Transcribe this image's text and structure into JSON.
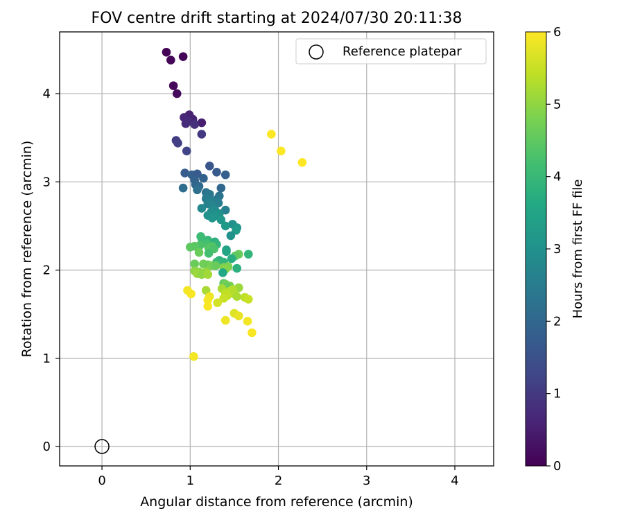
{
  "chart_data": {
    "type": "scatter",
    "title": "FOV centre drift starting at 2024/07/30 20:11:38",
    "xlabel": "Angular distance from reference (arcmin)",
    "ylabel": "Rotation from reference (arcmin)",
    "xlim": [
      -0.48,
      4.44
    ],
    "ylim": [
      -0.22,
      4.7
    ],
    "x_ticks": [
      0,
      1,
      2,
      3,
      4
    ],
    "y_ticks": [
      0,
      1,
      2,
      3,
      4
    ],
    "grid": true,
    "legend": {
      "placement": "top-right",
      "entries": [
        "Reference platepar"
      ]
    },
    "reference_point": {
      "name": "Reference platepar",
      "x": 0,
      "y": 0,
      "marker": "open-circle"
    },
    "colorbar": {
      "label": "Hours from first FF file",
      "min": 0,
      "max": 6,
      "ticks": [
        0,
        1,
        2,
        3,
        4,
        5,
        6
      ],
      "colormap": "viridis",
      "colormap_stops": [
        "#440154",
        "#482475",
        "#414487",
        "#355f8d",
        "#2a788e",
        "#21918c",
        "#22a884",
        "#44bf70",
        "#7ad151",
        "#bddf26",
        "#fde725"
      ]
    },
    "points": [
      {
        "x": 0.73,
        "y": 4.47,
        "h": 0.02
      },
      {
        "x": 0.92,
        "y": 4.42,
        "h": 0.05
      },
      {
        "x": 0.78,
        "y": 4.38,
        "h": 0.08
      },
      {
        "x": 0.81,
        "y": 4.09,
        "h": 0.12
      },
      {
        "x": 0.85,
        "y": 4.0,
        "h": 0.15
      },
      {
        "x": 0.99,
        "y": 3.76,
        "h": 0.55
      },
      {
        "x": 0.93,
        "y": 3.73,
        "h": 0.65
      },
      {
        "x": 1.03,
        "y": 3.71,
        "h": 0.6
      },
      {
        "x": 0.98,
        "y": 3.69,
        "h": 0.7
      },
      {
        "x": 1.13,
        "y": 3.67,
        "h": 0.5
      },
      {
        "x": 0.95,
        "y": 3.66,
        "h": 0.75
      },
      {
        "x": 1.05,
        "y": 3.65,
        "h": 0.8
      },
      {
        "x": 1.13,
        "y": 3.54,
        "h": 1.0
      },
      {
        "x": 0.84,
        "y": 3.47,
        "h": 1.05
      },
      {
        "x": 0.86,
        "y": 3.44,
        "h": 1.1
      },
      {
        "x": 0.96,
        "y": 3.35,
        "h": 1.2
      },
      {
        "x": 1.22,
        "y": 3.18,
        "h": 1.6
      },
      {
        "x": 1.3,
        "y": 3.11,
        "h": 1.7
      },
      {
        "x": 1.4,
        "y": 3.08,
        "h": 1.8
      },
      {
        "x": 0.94,
        "y": 3.1,
        "h": 1.75
      },
      {
        "x": 1.02,
        "y": 3.08,
        "h": 1.8
      },
      {
        "x": 1.08,
        "y": 3.09,
        "h": 1.7
      },
      {
        "x": 1.05,
        "y": 3.02,
        "h": 1.85
      },
      {
        "x": 1.15,
        "y": 3.04,
        "h": 1.9
      },
      {
        "x": 1.06,
        "y": 2.97,
        "h": 2.0
      },
      {
        "x": 1.1,
        "y": 2.95,
        "h": 2.05
      },
      {
        "x": 0.92,
        "y": 2.93,
        "h": 2.1
      },
      {
        "x": 1.35,
        "y": 2.93,
        "h": 2.0
      },
      {
        "x": 1.08,
        "y": 2.91,
        "h": 2.2
      },
      {
        "x": 1.18,
        "y": 2.88,
        "h": 2.3
      },
      {
        "x": 1.22,
        "y": 2.86,
        "h": 2.4
      },
      {
        "x": 1.33,
        "y": 2.84,
        "h": 2.3
      },
      {
        "x": 1.18,
        "y": 2.81,
        "h": 2.5
      },
      {
        "x": 1.3,
        "y": 2.8,
        "h": 2.4
      },
      {
        "x": 1.24,
        "y": 2.78,
        "h": 2.6
      },
      {
        "x": 1.2,
        "y": 2.75,
        "h": 2.65
      },
      {
        "x": 1.32,
        "y": 2.76,
        "h": 2.55
      },
      {
        "x": 1.25,
        "y": 2.73,
        "h": 2.7
      },
      {
        "x": 1.13,
        "y": 2.7,
        "h": 2.8
      },
      {
        "x": 1.4,
        "y": 2.68,
        "h": 2.6
      },
      {
        "x": 1.28,
        "y": 2.68,
        "h": 2.85
      },
      {
        "x": 1.24,
        "y": 2.66,
        "h": 2.9
      },
      {
        "x": 1.33,
        "y": 2.64,
        "h": 2.95
      },
      {
        "x": 1.2,
        "y": 2.62,
        "h": 3.0
      },
      {
        "x": 1.3,
        "y": 2.62,
        "h": 3.05
      },
      {
        "x": 1.25,
        "y": 2.59,
        "h": 3.1
      },
      {
        "x": 1.35,
        "y": 2.57,
        "h": 3.15
      },
      {
        "x": 1.48,
        "y": 2.52,
        "h": 3.0
      },
      {
        "x": 1.4,
        "y": 2.5,
        "h": 3.2
      },
      {
        "x": 1.53,
        "y": 2.48,
        "h": 3.1
      },
      {
        "x": 1.52,
        "y": 2.45,
        "h": 3.25
      },
      {
        "x": 1.46,
        "y": 2.39,
        "h": 3.0
      },
      {
        "x": 1.12,
        "y": 2.38,
        "h": 4.0
      },
      {
        "x": 1.13,
        "y": 2.36,
        "h": 4.1
      },
      {
        "x": 1.2,
        "y": 2.34,
        "h": 4.0
      },
      {
        "x": 1.28,
        "y": 2.32,
        "h": 3.8
      },
      {
        "x": 1.18,
        "y": 2.3,
        "h": 4.2
      },
      {
        "x": 1.3,
        "y": 2.29,
        "h": 3.9
      },
      {
        "x": 1.11,
        "y": 2.28,
        "h": 4.3
      },
      {
        "x": 1.25,
        "y": 2.27,
        "h": 4.35
      },
      {
        "x": 1.0,
        "y": 2.26,
        "h": 4.5
      },
      {
        "x": 1.05,
        "y": 2.27,
        "h": 4.45
      },
      {
        "x": 1.21,
        "y": 2.25,
        "h": 4.4
      },
      {
        "x": 1.27,
        "y": 2.24,
        "h": 4.3
      },
      {
        "x": 1.41,
        "y": 2.23,
        "h": 3.4
      },
      {
        "x": 1.41,
        "y": 2.21,
        "h": 3.5
      },
      {
        "x": 1.1,
        "y": 2.2,
        "h": 4.6
      },
      {
        "x": 1.21,
        "y": 2.19,
        "h": 4.2
      },
      {
        "x": 1.55,
        "y": 2.18,
        "h": 4.6
      },
      {
        "x": 1.66,
        "y": 2.18,
        "h": 3.9
      },
      {
        "x": 1.51,
        "y": 2.16,
        "h": 4.5
      },
      {
        "x": 1.47,
        "y": 2.13,
        "h": 3.7
      },
      {
        "x": 1.33,
        "y": 2.11,
        "h": 3.8
      },
      {
        "x": 1.38,
        "y": 2.09,
        "h": 3.9
      },
      {
        "x": 1.3,
        "y": 2.09,
        "h": 4.0
      },
      {
        "x": 1.05,
        "y": 2.07,
        "h": 4.6
      },
      {
        "x": 1.15,
        "y": 2.07,
        "h": 4.7
      },
      {
        "x": 1.2,
        "y": 2.06,
        "h": 4.65
      },
      {
        "x": 1.24,
        "y": 2.05,
        "h": 4.75
      },
      {
        "x": 1.29,
        "y": 2.05,
        "h": 4.6
      },
      {
        "x": 1.43,
        "y": 2.04,
        "h": 4.8
      },
      {
        "x": 1.38,
        "y": 2.03,
        "h": 4.85
      },
      {
        "x": 1.53,
        "y": 2.02,
        "h": 3.8
      },
      {
        "x": 1.4,
        "y": 2.01,
        "h": 4.9
      },
      {
        "x": 1.05,
        "y": 1.99,
        "h": 5.0
      },
      {
        "x": 1.1,
        "y": 1.98,
        "h": 4.95
      },
      {
        "x": 1.18,
        "y": 1.98,
        "h": 5.05
      },
      {
        "x": 1.37,
        "y": 1.97,
        "h": 3.6
      },
      {
        "x": 1.08,
        "y": 1.96,
        "h": 5.1
      },
      {
        "x": 1.13,
        "y": 1.95,
        "h": 5.0
      },
      {
        "x": 1.2,
        "y": 1.95,
        "h": 5.15
      },
      {
        "x": 1.38,
        "y": 1.85,
        "h": 4.5
      },
      {
        "x": 1.4,
        "y": 1.84,
        "h": 4.7
      },
      {
        "x": 1.45,
        "y": 1.82,
        "h": 4.8
      },
      {
        "x": 1.42,
        "y": 1.81,
        "h": 4.6
      },
      {
        "x": 1.55,
        "y": 1.8,
        "h": 5.1
      },
      {
        "x": 1.36,
        "y": 1.79,
        "h": 5.2
      },
      {
        "x": 1.48,
        "y": 1.78,
        "h": 5.3
      },
      {
        "x": 0.97,
        "y": 1.77,
        "h": 5.9
      },
      {
        "x": 1.18,
        "y": 1.77,
        "h": 5.2
      },
      {
        "x": 1.45,
        "y": 1.76,
        "h": 5.35
      },
      {
        "x": 1.4,
        "y": 1.74,
        "h": 5.4
      },
      {
        "x": 1.5,
        "y": 1.73,
        "h": 5.3
      },
      {
        "x": 1.01,
        "y": 1.73,
        "h": 5.95
      },
      {
        "x": 1.42,
        "y": 1.71,
        "h": 5.45
      },
      {
        "x": 1.53,
        "y": 1.7,
        "h": 5.25
      },
      {
        "x": 1.22,
        "y": 1.7,
        "h": 5.85
      },
      {
        "x": 1.62,
        "y": 1.69,
        "h": 5.4
      },
      {
        "x": 1.38,
        "y": 1.68,
        "h": 5.5
      },
      {
        "x": 1.66,
        "y": 1.67,
        "h": 5.5
      },
      {
        "x": 1.2,
        "y": 1.66,
        "h": 5.9
      },
      {
        "x": 1.31,
        "y": 1.63,
        "h": 5.6
      },
      {
        "x": 1.2,
        "y": 1.59,
        "h": 5.95
      },
      {
        "x": 1.5,
        "y": 1.51,
        "h": 5.7
      },
      {
        "x": 1.55,
        "y": 1.48,
        "h": 5.8
      },
      {
        "x": 1.4,
        "y": 1.43,
        "h": 5.85
      },
      {
        "x": 1.65,
        "y": 1.42,
        "h": 5.9
      },
      {
        "x": 1.7,
        "y": 1.29,
        "h": 5.95
      },
      {
        "x": 1.04,
        "y": 1.02,
        "h": 5.9
      },
      {
        "x": 1.92,
        "y": 3.54,
        "h": 5.98
      },
      {
        "x": 2.03,
        "y": 3.35,
        "h": 5.98
      },
      {
        "x": 2.27,
        "y": 3.22,
        "h": 6.0
      }
    ]
  }
}
